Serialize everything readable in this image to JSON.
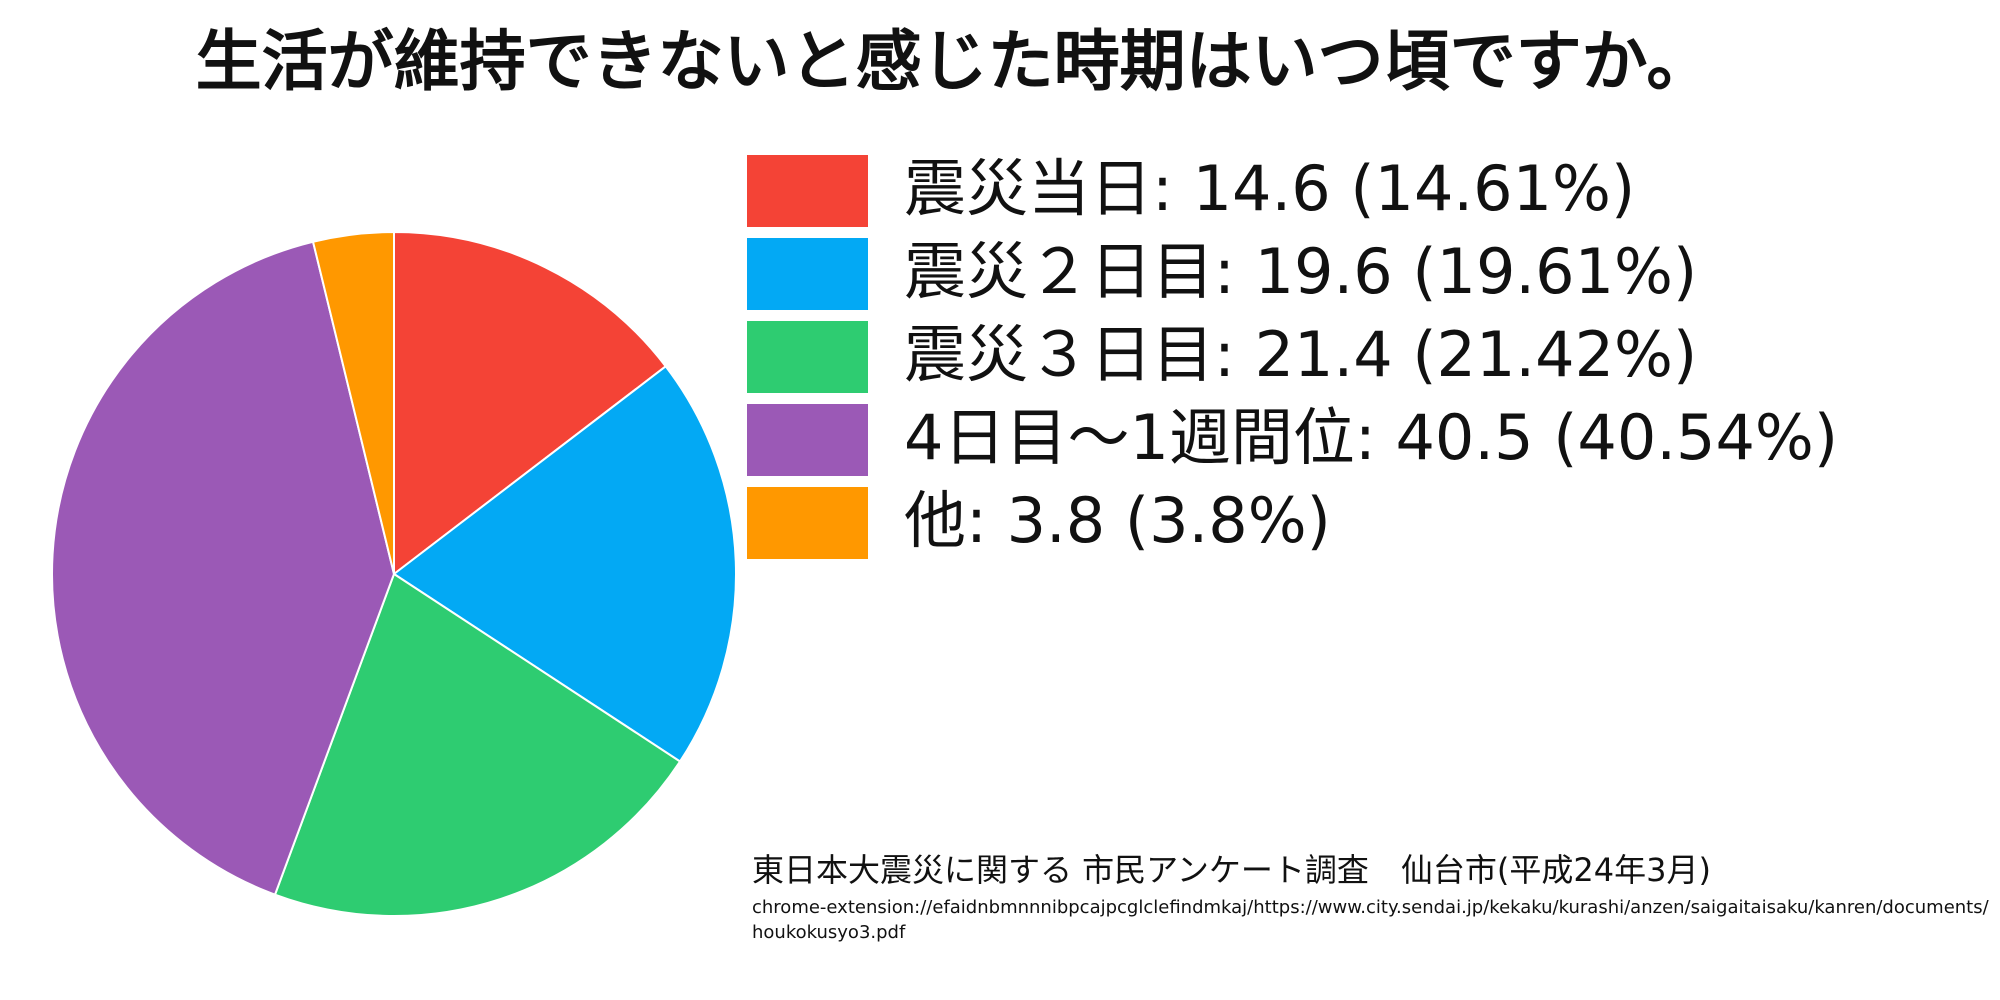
{
  "chart_data": {
    "type": "pie",
    "title": "生活が維持できないと感じた時期はいつ頃ですか。",
    "categories": [
      "震災当日: 14.6 (14.61%)",
      "震災２日目: 19.6 (19.61%)",
      "震災３日目: 21.4 (21.42%)",
      "4日目～1週間位: 40.5 (40.54%)",
      "他: 3.8 (3.8%)"
    ],
    "values": [
      14.6,
      19.6,
      21.4,
      40.5,
      3.8
    ],
    "colors": [
      "#f44336",
      "#03a9f4",
      "#2ecc71",
      "#9b59b6",
      "#ff9800"
    ],
    "source": "東日本大震災に関する 市民アンケート調査　仙台市(平成24年3月)",
    "url_lines": [
      "chrome-extension://efaidnbmnnnibpcajpcglclefindmkaj/https://www.city.sendai.jp/kekaku/kurashi/anzen/saigaitaisaku/kanren/documents/",
      "houkokusyo3.pdf"
    ]
  }
}
